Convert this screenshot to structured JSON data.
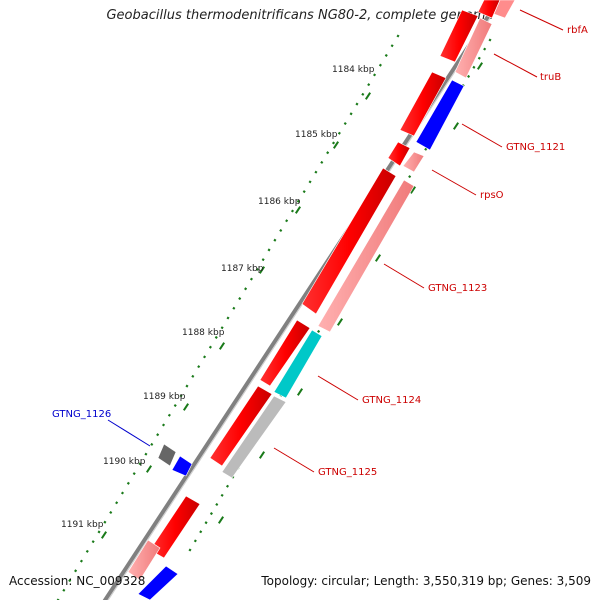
{
  "title": "Geobacillus thermodenitrificans NG80-2, complete genome",
  "accession": "Accession: NC_009328",
  "summary": "Topology: circular; Length: 3,550,319 bp; Genes: 3,509",
  "colors": {
    "forward_cds": "#ff0000",
    "forward_pseudo": "#ff8c8c",
    "reverse_cds": "#0000ff",
    "grey_cds": "#666666",
    "cyan_cds": "#00c8c8",
    "label_forward": "#cc0000",
    "label_reverse": "#0000cc",
    "tick": "#1a7a1a",
    "backbone": "#808080"
  },
  "kbp_labels": [
    {
      "text": "1184 kbp",
      "kbp": 1184
    },
    {
      "text": "1185 kbp",
      "kbp": 1185
    },
    {
      "text": "1186 kbp",
      "kbp": 1186
    },
    {
      "text": "1187 kbp",
      "kbp": 1187
    },
    {
      "text": "1188 kbp",
      "kbp": 1188
    },
    {
      "text": "1189 kbp",
      "kbp": 1189
    },
    {
      "text": "1190 kbp",
      "kbp": 1190
    },
    {
      "text": "1191 kbp",
      "kbp": 1191
    }
  ],
  "gene_labels": [
    {
      "name": "rbfA",
      "strand": "forward"
    },
    {
      "name": "truB",
      "strand": "forward"
    },
    {
      "name": "GTNG_1121",
      "strand": "forward"
    },
    {
      "name": "rpsO",
      "strand": "forward"
    },
    {
      "name": "GTNG_1123",
      "strand": "forward"
    },
    {
      "name": "GTNG_1124",
      "strand": "forward"
    },
    {
      "name": "GTNG_1125",
      "strand": "forward"
    },
    {
      "name": "GTNG_1126",
      "strand": "reverse"
    }
  ]
}
